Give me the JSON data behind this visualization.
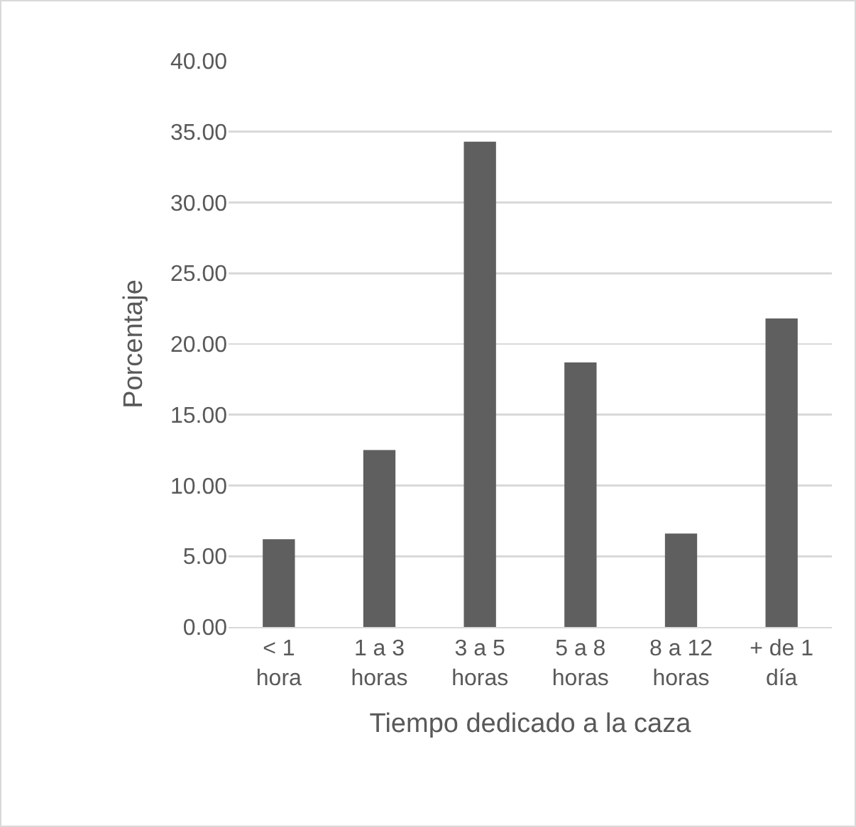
{
  "chart_data": {
    "type": "bar",
    "xlabel": "Tiempo dedicado a la caza",
    "ylabel": "Porcentaje",
    "categories": [
      "< 1 hora",
      "1 a 3 horas",
      "3 a 5 horas",
      "5 a 8 horas",
      "8 a 12 horas",
      "+ de 1 día"
    ],
    "values": [
      6.2,
      12.5,
      34.3,
      18.7,
      6.6,
      21.8
    ],
    "color": "#5f5f5f",
    "ylim": [
      0,
      40
    ],
    "yticks": [
      {
        "value": 0,
        "label": "0.00"
      },
      {
        "value": 5,
        "label": "5.00"
      },
      {
        "value": 10,
        "label": "10.00"
      },
      {
        "value": 15,
        "label": "15.00"
      },
      {
        "value": 20,
        "label": "20.00"
      },
      {
        "value": 25,
        "label": "25.00"
      },
      {
        "value": 30,
        "label": "30.00"
      },
      {
        "value": 35,
        "label": "35.00"
      },
      {
        "value": 40,
        "label": "40.00"
      }
    ],
    "grid": "y"
  }
}
